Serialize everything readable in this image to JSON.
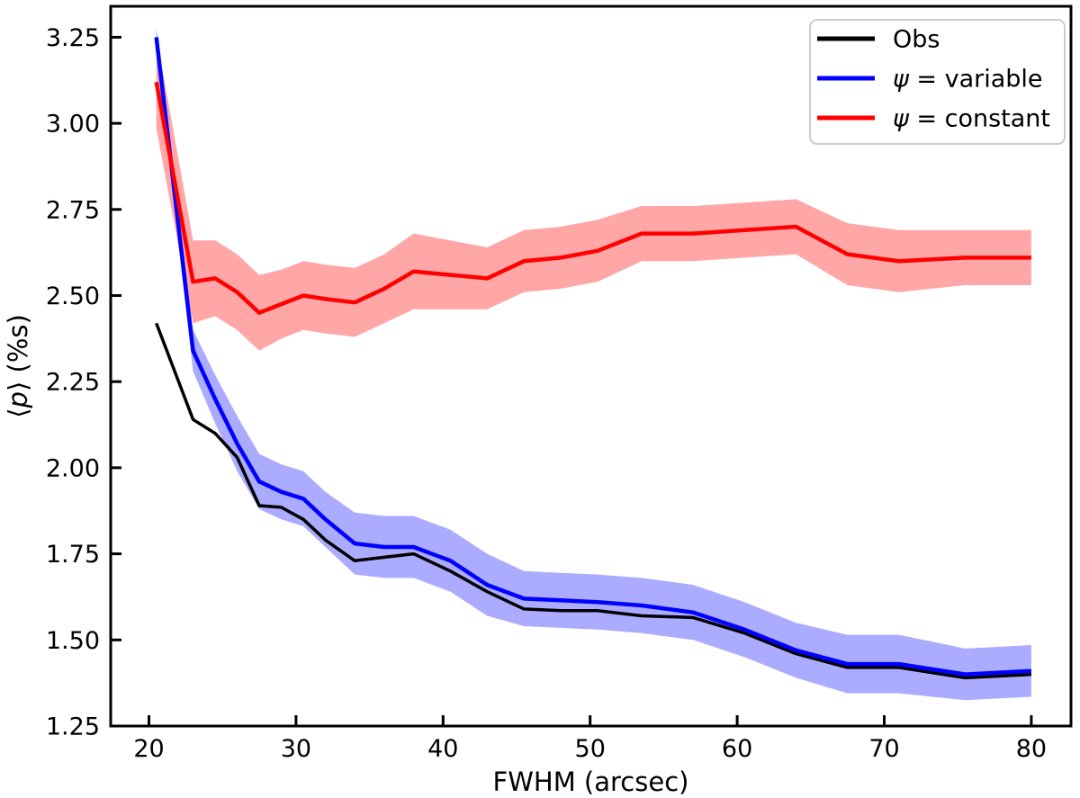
{
  "figure": {
    "title": "",
    "xlabel": "FWHM (arcsec)",
    "ylabel": "⟨p⟩ (%s)",
    "background_color": "#ffffff",
    "axis_color": "#000000",
    "legend": {
      "position": "upper right",
      "entries": [
        {
          "label": "Obs",
          "color": "#000000"
        },
        {
          "label": "ψ = variable",
          "color": "#0000ff"
        },
        {
          "label": "ψ = constant",
          "color": "#ff0000"
        }
      ]
    }
  },
  "chart_data": {
    "type": "line",
    "title": "",
    "xlabel": "FWHM (arcsec)",
    "ylabel": "⟨p⟩ (%s)",
    "grid": false,
    "legend_position": "upper right",
    "xlim": [
      17.4,
      82.7
    ],
    "ylim": [
      1.25,
      3.34
    ],
    "x_ticks": [
      20,
      30,
      40,
      50,
      60,
      70,
      80
    ],
    "y_ticks": [
      1.25,
      1.5,
      1.75,
      2.0,
      2.25,
      2.5,
      2.75,
      3.0,
      3.25
    ],
    "x_tick_labels": [
      "20",
      "30",
      "40",
      "50",
      "60",
      "70",
      "80"
    ],
    "y_tick_labels": [
      "1.25",
      "1.50",
      "1.75",
      "2.00",
      "2.25",
      "2.50",
      "2.75",
      "3.00",
      "3.25"
    ],
    "x": [
      20.5,
      23,
      24.5,
      26,
      27.5,
      29,
      30.5,
      32,
      34,
      36,
      38,
      40.5,
      43,
      45.5,
      48,
      50.5,
      53.5,
      57,
      60.5,
      64,
      67.5,
      71,
      75.5,
      80
    ],
    "series": [
      {
        "name": "Obs",
        "color": "#000000",
        "line_width": 3.5,
        "values": [
          2.42,
          2.14,
          2.1,
          2.03,
          1.89,
          1.885,
          1.85,
          1.79,
          1.73,
          1.74,
          1.75,
          1.7,
          1.64,
          1.59,
          1.585,
          1.585,
          1.57,
          1.565,
          1.52,
          1.46,
          1.42,
          1.42,
          1.39,
          1.4
        ],
        "band_half_width": null
      },
      {
        "name": "ψ = variable",
        "color": "#0000ff",
        "band_color": "rgba(0,0,255,0.33)",
        "line_width": 4.5,
        "values": [
          3.25,
          2.34,
          2.2,
          2.07,
          1.96,
          1.93,
          1.91,
          1.85,
          1.78,
          1.77,
          1.77,
          1.73,
          1.66,
          1.62,
          1.615,
          1.61,
          1.6,
          1.58,
          1.53,
          1.47,
          1.43,
          1.43,
          1.4,
          1.41
        ],
        "band_half_width": [
          0.03,
          0.06,
          0.07,
          0.08,
          0.08,
          0.08,
          0.08,
          0.08,
          0.09,
          0.09,
          0.09,
          0.09,
          0.09,
          0.08,
          0.08,
          0.08,
          0.08,
          0.08,
          0.08,
          0.08,
          0.085,
          0.085,
          0.075,
          0.075
        ]
      },
      {
        "name": "ψ = constant",
        "color": "#ff0000",
        "band_color": "rgba(255,0,0,0.35)",
        "line_width": 4.5,
        "values": [
          3.12,
          2.54,
          2.55,
          2.51,
          2.45,
          2.475,
          2.5,
          2.49,
          2.48,
          2.52,
          2.57,
          2.56,
          2.55,
          2.6,
          2.61,
          2.63,
          2.68,
          2.68,
          2.69,
          2.7,
          2.62,
          2.6,
          2.61,
          2.61
        ],
        "band_half_width": [
          0.135,
          0.12,
          0.11,
          0.11,
          0.11,
          0.1,
          0.1,
          0.1,
          0.1,
          0.1,
          0.11,
          0.1,
          0.09,
          0.09,
          0.09,
          0.09,
          0.08,
          0.08,
          0.08,
          0.08,
          0.09,
          0.09,
          0.08,
          0.08
        ]
      }
    ]
  }
}
